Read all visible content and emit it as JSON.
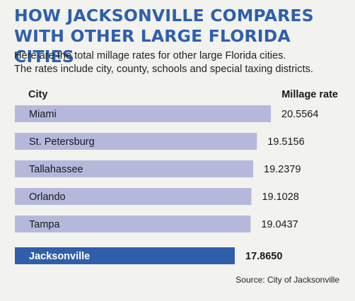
{
  "header": {
    "title_line1": "HOW JACKSONVILLE COMPARES",
    "title_line2": "WITH OTHER LARGE FLORIDA CITIES",
    "subtitle_line1": "Here are the total millage rates for other large Florida cities.",
    "subtitle_line2": "The rates include city, county, schools and special taxing districts."
  },
  "columns": {
    "city": "City",
    "rate": "Millage rate"
  },
  "source": "Source: City of Jacksonville",
  "colors": {
    "bar": "#b4b9dc",
    "highlight_bar": "#2f5fab",
    "title": "#2f5fab"
  },
  "chart_data": {
    "type": "bar",
    "orientation": "horizontal",
    "title": "",
    "xlabel": "Millage rate",
    "ylabel": "City",
    "categories": [
      "Miami",
      "St. Petersburg",
      "Tallahassee",
      "Orlando",
      "Tampa",
      "Jacksonville"
    ],
    "values": [
      20.5564,
      19.5156,
      19.2379,
      19.1028,
      19.0437,
      17.865
    ],
    "value_labels": [
      "20.5564",
      "19.5156",
      "19.2379",
      "19.1028",
      "19.0437",
      "17.8650"
    ],
    "highlight": "Jacksonville",
    "grid": false,
    "legend": "none"
  }
}
